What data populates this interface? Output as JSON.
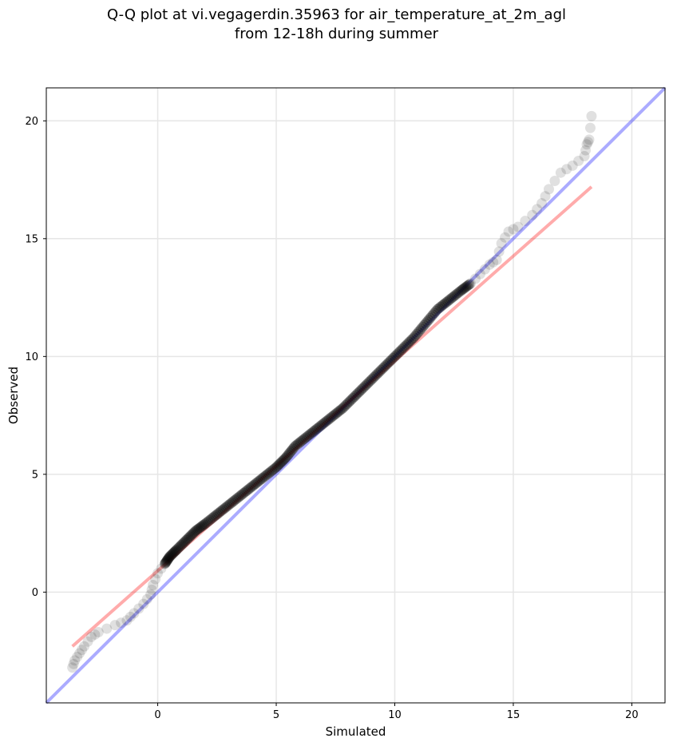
{
  "title_line1": "Q-Q plot at vi.vegagerdin.35963 for air_temperature_at_2m_agl",
  "title_line2": "from 12-18h during summer",
  "chart_data": {
    "type": "scatter",
    "title": "Q-Q plot at vi.vegagerdin.35963 for air_temperature_at_2m_agl from 12-18h during summer",
    "xlabel": "Simulated",
    "ylabel": "Observed",
    "xlim": [
      -4.7,
      21.4
    ],
    "ylim": [
      -4.7,
      21.4
    ],
    "xticks": [
      0,
      5,
      10,
      15,
      20
    ],
    "yticks": [
      0,
      5,
      10,
      15,
      20
    ],
    "grid": true,
    "identity_line": {
      "color": "#0000ff",
      "from": [
        -4.7,
        -4.7
      ],
      "to": [
        21.4,
        21.4
      ]
    },
    "fit_line": {
      "color": "#ff0000",
      "from": [
        -3.6,
        -2.3
      ],
      "to": [
        18.3,
        17.2
      ]
    },
    "points": [
      [
        -3.6,
        -3.2
      ],
      [
        -3.5,
        -2.9
      ],
      [
        -3.3,
        -2.6
      ],
      [
        -3.1,
        -2.3
      ],
      [
        -2.8,
        -1.9
      ],
      [
        -2.5,
        -1.7
      ],
      [
        -1.8,
        -1.4
      ],
      [
        -1.3,
        -1.2
      ],
      [
        -1.0,
        -0.9
      ],
      [
        -0.6,
        -0.5
      ],
      [
        -0.3,
        -0.1
      ],
      [
        -0.2,
        0.3
      ],
      [
        0.0,
        0.8
      ],
      [
        0.3,
        1.2
      ],
      [
        0.5,
        1.5
      ],
      [
        0.8,
        1.8
      ],
      [
        1.2,
        2.2
      ],
      [
        1.6,
        2.6
      ],
      [
        2.0,
        2.9
      ],
      [
        2.5,
        3.3
      ],
      [
        3.0,
        3.7
      ],
      [
        3.5,
        4.1
      ],
      [
        4.0,
        4.5
      ],
      [
        4.5,
        4.9
      ],
      [
        5.0,
        5.3
      ],
      [
        5.4,
        5.7
      ],
      [
        5.8,
        6.2
      ],
      [
        6.3,
        6.6
      ],
      [
        6.8,
        7.0
      ],
      [
        7.3,
        7.4
      ],
      [
        7.8,
        7.8
      ],
      [
        8.3,
        8.3
      ],
      [
        8.8,
        8.8
      ],
      [
        9.3,
        9.3
      ],
      [
        9.8,
        9.8
      ],
      [
        10.3,
        10.3
      ],
      [
        10.8,
        10.8
      ],
      [
        11.3,
        11.4
      ],
      [
        11.8,
        12.0
      ],
      [
        12.3,
        12.4
      ],
      [
        12.8,
        12.8
      ],
      [
        13.2,
        13.1
      ],
      [
        13.6,
        13.5
      ],
      [
        14.0,
        13.9
      ],
      [
        14.3,
        14.1
      ],
      [
        14.5,
        14.8
      ],
      [
        14.8,
        15.3
      ],
      [
        15.2,
        15.5
      ],
      [
        15.8,
        16.0
      ],
      [
        16.2,
        16.5
      ],
      [
        16.5,
        17.1
      ],
      [
        17.0,
        17.8
      ],
      [
        17.5,
        18.1
      ],
      [
        18.0,
        18.5
      ],
      [
        18.1,
        19.0
      ],
      [
        18.2,
        19.2
      ],
      [
        18.3,
        20.2
      ]
    ]
  }
}
